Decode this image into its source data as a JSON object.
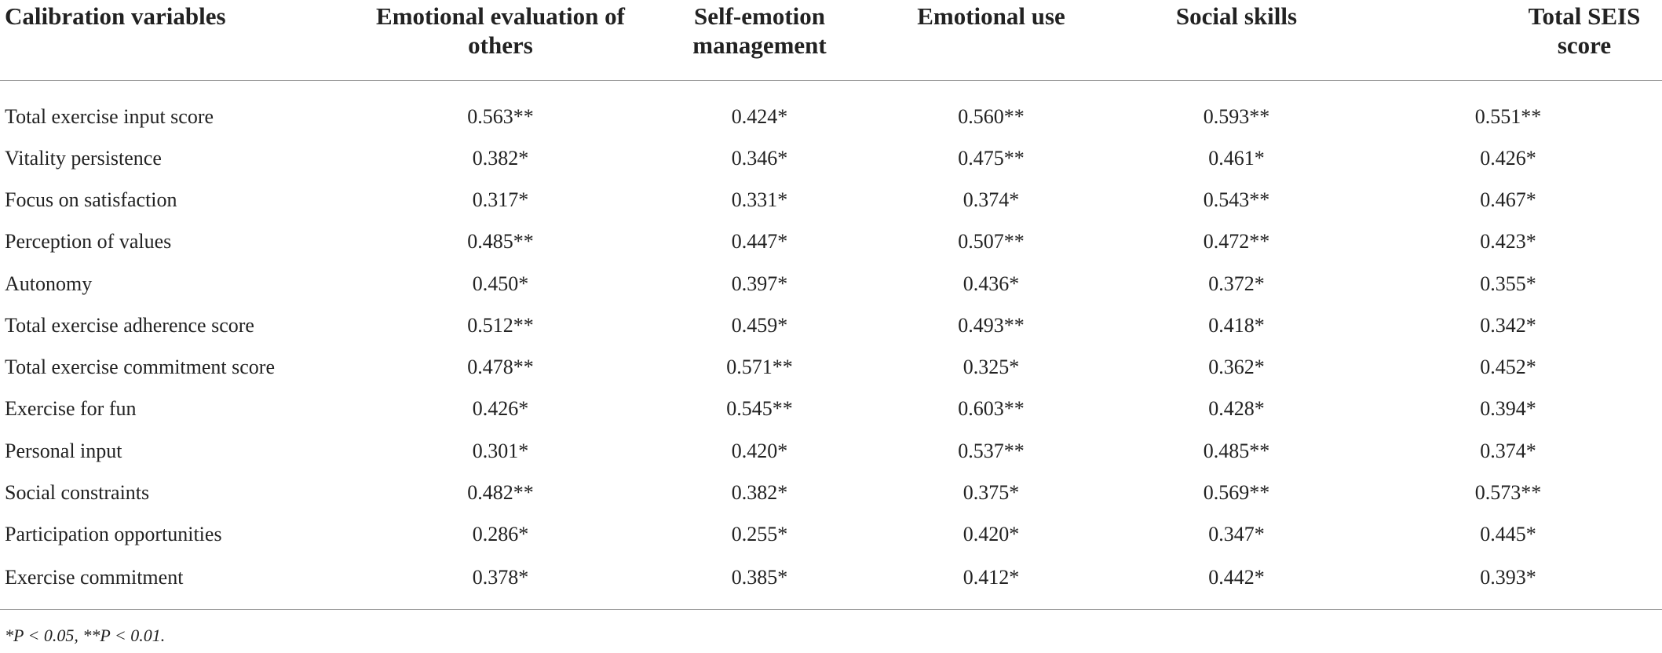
{
  "table": {
    "headers": [
      "Calibration variables",
      "Emotional evaluation of others",
      "Self-emotion management",
      "Emotional use",
      "Social skills",
      "Total SEIS score"
    ],
    "rows": [
      {
        "label": "Total exercise input score",
        "values": [
          "0.563**",
          "0.424*",
          "0.560**",
          "0.593**",
          "0.551**"
        ]
      },
      {
        "label": "Vitality persistence",
        "values": [
          "0.382*",
          "0.346*",
          "0.475**",
          "0.461*",
          "0.426*"
        ]
      },
      {
        "label": "Focus on satisfaction",
        "values": [
          "0.317*",
          "0.331*",
          "0.374*",
          "0.543**",
          "0.467*"
        ]
      },
      {
        "label": "Perception of values",
        "values": [
          "0.485**",
          "0.447*",
          "0.507**",
          "0.472**",
          "0.423*"
        ]
      },
      {
        "label": "Autonomy",
        "values": [
          "0.450*",
          "0.397*",
          "0.436*",
          "0.372*",
          "0.355*"
        ]
      },
      {
        "label": "Total exercise adherence score",
        "values": [
          "0.512**",
          "0.459*",
          "0.493**",
          "0.418*",
          "0.342*"
        ]
      },
      {
        "label": "Total exercise commitment score",
        "values": [
          "0.478**",
          "0.571**",
          "0.325*",
          "0.362*",
          "0.452*"
        ]
      },
      {
        "label": "Exercise for fun",
        "values": [
          "0.426*",
          "0.545**",
          "0.603**",
          "0.428*",
          "0.394*"
        ]
      },
      {
        "label": "Personal input",
        "values": [
          "0.301*",
          "0.420*",
          "0.537**",
          "0.485**",
          "0.374*"
        ]
      },
      {
        "label": "Social constraints",
        "values": [
          "0.482**",
          "0.382*",
          "0.375*",
          "0.569**",
          "0.573**"
        ]
      },
      {
        "label": "Participation opportunities",
        "values": [
          "0.286*",
          "0.255*",
          "0.420*",
          "0.347*",
          "0.445*"
        ]
      },
      {
        "label": "Exercise commitment",
        "values": [
          "0.378*",
          "0.385*",
          "0.412*",
          "0.442*",
          "0.393*"
        ]
      }
    ]
  },
  "footnote": "*P < 0.05, **P < 0.01."
}
